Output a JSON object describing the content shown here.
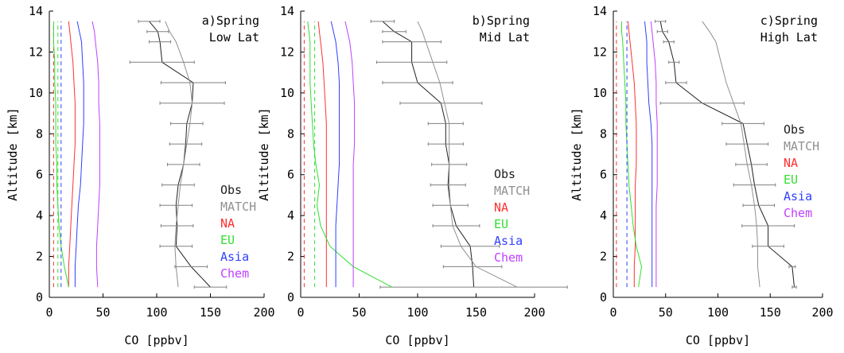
{
  "figure": {
    "xlabel": "CO [ppbv]",
    "ylabel": "Altitude [km]",
    "xticks": [
      0,
      50,
      100,
      150,
      200
    ],
    "yticks": [
      0,
      2,
      4,
      6,
      8,
      10,
      12,
      14
    ],
    "xlim": [
      0,
      200
    ],
    "ylim": [
      0,
      14
    ],
    "colors": {
      "Obs": "#202020",
      "MATCH": "#909090",
      "NA": "#ff3030",
      "EU": "#30e030",
      "Asia": "#3040ff",
      "Chem": "#c040ff"
    }
  },
  "chart_data": [
    {
      "type": "line",
      "label": "a)",
      "title_line1": "Spring",
      "title_line2": "Low Lat",
      "xlabel": "CO [ppbv]",
      "ylabel": "Altitude [km]",
      "xlim": [
        0,
        200
      ],
      "ylim": [
        0,
        14
      ],
      "legend": [
        "Obs",
        "MATCH",
        "NA",
        "EU",
        "Asia",
        "Chem"
      ],
      "series": [
        {
          "name": "Obs",
          "style": "solid",
          "x": [
            150,
            132,
            118,
            119,
            118,
            120,
            125,
            127,
            128,
            133,
            134,
            105,
            103,
            101,
            93
          ],
          "y": [
            0.5,
            1.5,
            2.5,
            3.5,
            4.5,
            5.5,
            6.5,
            7.5,
            8.5,
            9.5,
            10.5,
            11.5,
            12.5,
            13.0,
            13.5
          ],
          "xerr": [
            15,
            15,
            15,
            15,
            15,
            15,
            15,
            15,
            15,
            30,
            30,
            30,
            10,
            10,
            10
          ]
        },
        {
          "name": "MATCH",
          "style": "solid",
          "x": [
            120,
            118,
            117,
            118,
            120,
            122,
            125,
            128,
            131,
            133,
            131,
            125,
            118,
            112,
            108
          ],
          "y": [
            0.5,
            1.5,
            2.5,
            3.5,
            4.5,
            5.5,
            6.5,
            7.5,
            8.5,
            9.5,
            10.5,
            11.5,
            12.5,
            13.0,
            13.5
          ]
        },
        {
          "name": "NA",
          "style": "solid",
          "x": [
            18,
            18,
            19,
            20,
            21,
            22,
            23,
            24,
            24,
            24,
            23,
            22,
            20,
            19,
            18
          ],
          "y": [
            0.5,
            1.5,
            2.5,
            3.5,
            4.5,
            5.5,
            6.5,
            7.5,
            8.5,
            9.5,
            10.5,
            11.5,
            12.5,
            13.0,
            13.5
          ]
        },
        {
          "name": "NA-dashed",
          "style": "dashed",
          "x": [
            4,
            4,
            4,
            4,
            4,
            4,
            4,
            4,
            4,
            4,
            4,
            4,
            4,
            4,
            4
          ],
          "y": [
            0.5,
            1.5,
            2.5,
            3.5,
            4.5,
            5.5,
            6.5,
            7.5,
            8.5,
            9.5,
            10.5,
            11.5,
            12.5,
            13.0,
            13.5
          ]
        },
        {
          "name": "EU",
          "style": "solid",
          "x": [
            18,
            14,
            11,
            9,
            8,
            7,
            7,
            6,
            6,
            6,
            5,
            5,
            4,
            4,
            4
          ],
          "y": [
            0.5,
            1.5,
            2.5,
            3.5,
            4.5,
            5.5,
            6.5,
            7.5,
            8.5,
            9.5,
            10.5,
            11.5,
            12.5,
            13.0,
            13.5
          ]
        },
        {
          "name": "EU-dashed",
          "style": "dashed",
          "x": [
            8,
            8,
            8,
            8,
            8,
            8,
            8,
            8,
            8,
            8,
            8,
            8,
            8,
            8,
            8
          ],
          "y": [
            0.5,
            1.5,
            2.5,
            3.5,
            4.5,
            5.5,
            6.5,
            7.5,
            8.5,
            9.5,
            10.5,
            11.5,
            12.5,
            13.0,
            13.5
          ]
        },
        {
          "name": "Asia",
          "style": "solid",
          "x": [
            24,
            24,
            25,
            26,
            27,
            29,
            30,
            31,
            32,
            32,
            32,
            31,
            30,
            28,
            26
          ],
          "y": [
            0.5,
            1.5,
            2.5,
            3.5,
            4.5,
            5.5,
            6.5,
            7.5,
            8.5,
            9.5,
            10.5,
            11.5,
            12.5,
            13.0,
            13.5
          ]
        },
        {
          "name": "Asia-dashed",
          "style": "dashed",
          "x": [
            11,
            11,
            11,
            11,
            11,
            11,
            11,
            11,
            11,
            11,
            11,
            11,
            11,
            11,
            11
          ],
          "y": [
            0.5,
            1.5,
            2.5,
            3.5,
            4.5,
            5.5,
            6.5,
            7.5,
            8.5,
            9.5,
            10.5,
            11.5,
            12.5,
            13.0,
            13.5
          ]
        },
        {
          "name": "Chem",
          "style": "solid",
          "x": [
            45,
            44,
            44,
            45,
            46,
            47,
            47,
            47,
            47,
            46,
            46,
            45,
            43,
            42,
            40
          ],
          "y": [
            0.5,
            1.5,
            2.5,
            3.5,
            4.5,
            5.5,
            6.5,
            7.5,
            8.5,
            9.5,
            10.5,
            11.5,
            12.5,
            13.0,
            13.5
          ]
        }
      ]
    },
    {
      "type": "line",
      "label": "b)",
      "title_line1": "Spring",
      "title_line2": "Mid Lat",
      "xlabel": "CO [ppbv]",
      "ylabel": "Altitude [km]",
      "xlim": [
        0,
        200
      ],
      "ylim": [
        0,
        14
      ],
      "legend": [
        "Obs",
        "MATCH",
        "NA",
        "EU",
        "Asia",
        "Chem"
      ],
      "series": [
        {
          "name": "Obs",
          "style": "solid",
          "x": [
            148,
            147,
            145,
            133,
            128,
            126,
            127,
            124,
            124,
            120,
            100,
            95,
            95,
            80,
            70
          ],
          "y": [
            0.5,
            1.5,
            2.5,
            3.5,
            4.5,
            5.5,
            6.5,
            7.5,
            8.5,
            9.5,
            10.5,
            11.5,
            12.5,
            13.0,
            13.5
          ],
          "xerr": [
            80,
            25,
            25,
            20,
            15,
            15,
            15,
            15,
            15,
            35,
            30,
            30,
            25,
            10,
            10
          ]
        },
        {
          "name": "MATCH",
          "style": "solid",
          "x": [
            185,
            150,
            137,
            130,
            128,
            127,
            127,
            127,
            127,
            123,
            119,
            113,
            107,
            104,
            100
          ],
          "y": [
            0.5,
            1.5,
            2.5,
            3.5,
            4.5,
            5.5,
            6.5,
            7.5,
            8.5,
            9.5,
            10.5,
            11.5,
            12.5,
            13.0,
            13.5
          ]
        },
        {
          "name": "NA",
          "style": "solid",
          "x": [
            22,
            22,
            22,
            22,
            22,
            22,
            22,
            22,
            22,
            21,
            20,
            19,
            17,
            16,
            15
          ],
          "y": [
            0.5,
            1.5,
            2.5,
            3.5,
            4.5,
            5.5,
            6.5,
            7.5,
            8.5,
            9.5,
            10.5,
            11.5,
            12.5,
            13.0,
            13.5
          ]
        },
        {
          "name": "NA-dashed",
          "style": "dashed",
          "x": [
            3,
            3,
            3,
            3,
            3,
            3,
            3,
            3,
            3,
            3,
            3,
            3,
            3,
            3,
            3
          ],
          "y": [
            0.5,
            1.5,
            2.5,
            3.5,
            4.5,
            5.5,
            6.5,
            7.5,
            8.5,
            9.5,
            10.5,
            11.5,
            12.5,
            13.0,
            13.5
          ]
        },
        {
          "name": "EU",
          "style": "solid",
          "x": [
            78,
            45,
            25,
            17,
            14,
            16,
            13,
            11,
            10,
            9,
            8,
            8,
            8,
            7,
            6
          ],
          "y": [
            0.5,
            1.5,
            2.5,
            3.5,
            4.5,
            5.5,
            6.5,
            7.5,
            8.5,
            9.5,
            10.5,
            11.5,
            12.5,
            13.0,
            13.5
          ]
        },
        {
          "name": "EU-dashed",
          "style": "dashed",
          "x": [
            12,
            12,
            12,
            12,
            12,
            12,
            12,
            12,
            12,
            12,
            12,
            12,
            12,
            12,
            12
          ],
          "y": [
            0.5,
            1.5,
            2.5,
            3.5,
            4.5,
            5.5,
            6.5,
            7.5,
            8.5,
            9.5,
            10.5,
            11.5,
            12.5,
            13.0,
            13.5
          ]
        },
        {
          "name": "Asia",
          "style": "solid",
          "x": [
            30,
            30,
            30,
            30,
            31,
            32,
            33,
            33,
            33,
            33,
            33,
            32,
            30,
            28,
            26
          ],
          "y": [
            0.5,
            1.5,
            2.5,
            3.5,
            4.5,
            5.5,
            6.5,
            7.5,
            8.5,
            9.5,
            10.5,
            11.5,
            12.5,
            13.0,
            13.5
          ]
        },
        {
          "name": "Chem",
          "style": "solid",
          "x": [
            45,
            45,
            45,
            45,
            45,
            45,
            45,
            46,
            46,
            46,
            45,
            44,
            42,
            40,
            38
          ],
          "y": [
            0.5,
            1.5,
            2.5,
            3.5,
            4.5,
            5.5,
            6.5,
            7.5,
            8.5,
            9.5,
            10.5,
            11.5,
            12.5,
            13.0,
            13.5
          ]
        }
      ]
    },
    {
      "type": "line",
      "label": "c)",
      "title_line1": "Spring",
      "title_line2": "High Lat",
      "xlabel": "CO [ppbv]",
      "ylabel": "Altitude [km]",
      "xlim": [
        0,
        200
      ],
      "ylim": [
        0,
        14
      ],
      "legend": [
        "Obs",
        "MATCH",
        "NA",
        "EU",
        "Asia",
        "Chem"
      ],
      "series": [
        {
          "name": "Obs",
          "style": "solid",
          "x": [
            173,
            171,
            148,
            148,
            139,
            135,
            132,
            128,
            124,
            85,
            60,
            58,
            53,
            47,
            45
          ],
          "y": [
            0.5,
            1.5,
            2.5,
            3.5,
            4.5,
            5.5,
            6.5,
            7.5,
            8.5,
            9.5,
            10.5,
            11.5,
            12.5,
            13.0,
            13.5
          ],
          "xerr": [
            2,
            3,
            15,
            25,
            15,
            20,
            15,
            20,
            20,
            40,
            10,
            5,
            5,
            5,
            5
          ]
        },
        {
          "name": "MATCH",
          "style": "solid",
          "x": [
            140,
            138,
            138,
            137,
            135,
            132,
            128,
            125,
            122,
            115,
            108,
            103,
            98,
            92,
            85
          ],
          "y": [
            0.5,
            1.5,
            2.5,
            3.5,
            4.5,
            5.5,
            6.5,
            7.5,
            8.5,
            9.5,
            10.5,
            11.5,
            12.5,
            13.0,
            13.5
          ]
        },
        {
          "name": "NA",
          "style": "solid",
          "x": [
            20,
            20,
            21,
            21,
            21,
            21,
            22,
            22,
            22,
            21,
            20,
            18,
            16,
            15,
            14
          ],
          "y": [
            0.5,
            1.5,
            2.5,
            3.5,
            4.5,
            5.5,
            6.5,
            7.5,
            8.5,
            9.5,
            10.5,
            11.5,
            12.5,
            13.0,
            13.5
          ]
        },
        {
          "name": "NA-dashed",
          "style": "dashed",
          "x": [
            3,
            3,
            3,
            3,
            3,
            3,
            3,
            3,
            3,
            3,
            3,
            3,
            3,
            3,
            3
          ],
          "y": [
            0.5,
            1.5,
            2.5,
            3.5,
            4.5,
            5.5,
            6.5,
            7.5,
            8.5,
            9.5,
            10.5,
            11.5,
            12.5,
            13.0,
            13.5
          ]
        },
        {
          "name": "EU",
          "style": "solid",
          "x": [
            24,
            27,
            22,
            19,
            17,
            15,
            14,
            13,
            12,
            12,
            11,
            10,
            9,
            8,
            8
          ],
          "y": [
            0.5,
            1.5,
            2.5,
            3.5,
            4.5,
            5.5,
            6.5,
            7.5,
            8.5,
            9.5,
            10.5,
            11.5,
            12.5,
            13.0,
            13.5
          ]
        },
        {
          "name": "Asia-dashed",
          "style": "dashed",
          "x": [
            13,
            13,
            13,
            13,
            13,
            13,
            13,
            13,
            13,
            13,
            13,
            13,
            13,
            13,
            13
          ],
          "y": [
            0.5,
            1.5,
            2.5,
            3.5,
            4.5,
            5.5,
            6.5,
            7.5,
            8.5,
            9.5,
            10.5,
            11.5,
            12.5,
            13.0,
            13.5
          ]
        },
        {
          "name": "Asia",
          "style": "solid",
          "x": [
            37,
            37,
            37,
            37,
            37,
            37,
            37,
            37,
            36,
            34,
            33,
            32,
            32,
            31,
            30
          ],
          "y": [
            0.5,
            1.5,
            2.5,
            3.5,
            4.5,
            5.5,
            6.5,
            7.5,
            8.5,
            9.5,
            10.5,
            11.5,
            12.5,
            13.0,
            13.5
          ]
        },
        {
          "name": "Chem",
          "style": "solid",
          "x": [
            41,
            41,
            41,
            41,
            41,
            42,
            42,
            42,
            42,
            41,
            41,
            40,
            38,
            37,
            36
          ],
          "y": [
            0.5,
            1.5,
            2.5,
            3.5,
            4.5,
            5.5,
            6.5,
            7.5,
            8.5,
            9.5,
            10.5,
            11.5,
            12.5,
            13.0,
            13.5
          ]
        }
      ]
    }
  ]
}
